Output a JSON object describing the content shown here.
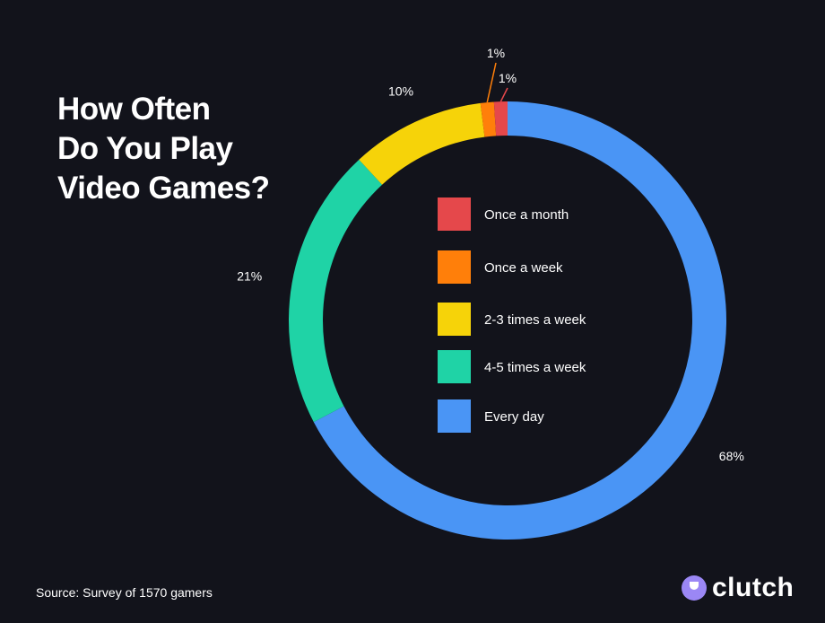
{
  "title_lines": [
    "How Often",
    "Do You Play",
    "Video Games?"
  ],
  "source": "Source: Survey of 1570 gamers",
  "brand": "clutch",
  "chart_data": {
    "type": "pie",
    "title": "How Often Do You Play Video Games?",
    "donut": true,
    "legend_position": "center",
    "slices": [
      {
        "label": "Every day",
        "value": 68,
        "display": "68%",
        "color": "#4a95f5"
      },
      {
        "label": "4-5 times a week",
        "value": 21,
        "display": "21%",
        "color": "#1fd3a6"
      },
      {
        "label": "2-3 times a week",
        "value": 10,
        "display": "10%",
        "color": "#f6d309"
      },
      {
        "label": "Once a week",
        "value": 1,
        "display": "1%",
        "color": "#ff7f0a"
      },
      {
        "label": "Once a month",
        "value": 1,
        "display": "1%",
        "color": "#e5484b"
      }
    ],
    "legend_order": [
      "Once a month",
      "Once a week",
      "2-3 times a week",
      "4-5 times a week",
      "Every day"
    ]
  }
}
